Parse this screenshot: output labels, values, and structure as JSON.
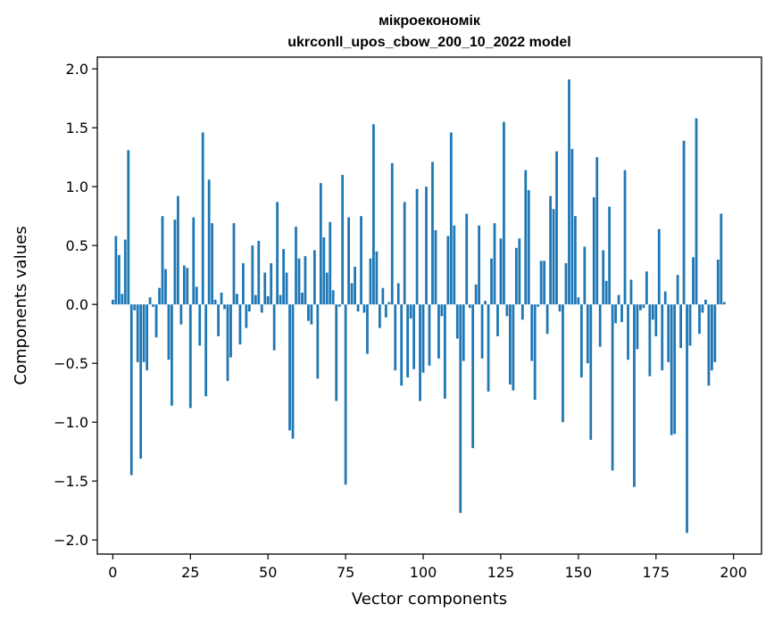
{
  "chart_data": {
    "type": "bar",
    "title_line1": "мікроекономік",
    "title_line2": "ukrconll_upos_cbow_200_10_2022 model",
    "xlabel": "Vector components",
    "ylabel": "Components values",
    "xlim": [
      -5,
      209
    ],
    "ylim": [
      -2.12,
      2.1
    ],
    "xticks": [
      0,
      25,
      50,
      75,
      100,
      125,
      150,
      175,
      200
    ],
    "xtick_labels": [
      "0",
      "25",
      "50",
      "75",
      "100",
      "125",
      "150",
      "175",
      "200"
    ],
    "yticks": [
      2.0,
      1.5,
      1.0,
      0.5,
      0.0,
      -0.5,
      -1.0,
      -1.5,
      -2.0
    ],
    "ytick_labels": [
      "2.0",
      "1.5",
      "1.0",
      "0.5",
      "0.0",
      "−0.5",
      "−1.0",
      "−1.5",
      "−2.0"
    ],
    "grid": false,
    "bar_color": "#1f77b4",
    "values": [
      0.04,
      0.58,
      0.42,
      0.09,
      0.55,
      1.31,
      -1.45,
      -0.05,
      -0.49,
      -1.31,
      -0.49,
      -0.56,
      0.06,
      -0.02,
      -0.28,
      0.14,
      0.75,
      0.3,
      -0.47,
      -0.86,
      0.72,
      0.92,
      -0.17,
      0.33,
      0.31,
      -0.88,
      0.74,
      0.15,
      -0.35,
      1.46,
      -0.78,
      1.06,
      0.69,
      0.04,
      -0.27,
      0.1,
      -0.04,
      -0.65,
      -0.45,
      0.69,
      0.09,
      -0.34,
      0.35,
      -0.2,
      -0.06,
      0.5,
      0.08,
      0.54,
      -0.07,
      0.27,
      0.07,
      0.35,
      -0.39,
      0.87,
      0.08,
      0.47,
      0.27,
      -1.07,
      -1.14,
      0.66,
      0.39,
      0.1,
      0.41,
      -0.14,
      -0.17,
      0.46,
      -0.63,
      1.03,
      0.57,
      0.27,
      0.7,
      0.12,
      -0.82,
      -0.02,
      1.1,
      -1.53,
      0.74,
      0.18,
      0.32,
      -0.06,
      0.75,
      -0.07,
      -0.42,
      0.39,
      1.53,
      0.45,
      -0.2,
      0.14,
      -0.11,
      0.02,
      1.2,
      -0.56,
      0.18,
      -0.69,
      0.87,
      -0.62,
      -0.12,
      -0.55,
      0.98,
      -0.82,
      -0.58,
      1.0,
      -0.52,
      1.21,
      0.63,
      -0.46,
      -0.1,
      -0.8,
      0.58,
      1.46,
      0.67,
      -0.29,
      -1.77,
      -0.48,
      0.77,
      -0.03,
      -1.22,
      0.17,
      0.67,
      -0.46,
      0.03,
      -0.74,
      0.39,
      0.69,
      -0.27,
      0.56,
      1.55,
      -0.1,
      -0.68,
      -0.73,
      0.48,
      0.56,
      -0.13,
      1.14,
      0.97,
      -0.48,
      -0.81,
      -0.02,
      0.37,
      0.37,
      -0.25,
      0.92,
      0.81,
      1.3,
      -0.06,
      -1.0,
      0.35,
      1.91,
      1.32,
      0.75,
      0.06,
      -0.62,
      0.49,
      -0.5,
      -1.15,
      0.91,
      1.25,
      -0.36,
      0.46,
      0.2,
      0.83,
      -1.41,
      -0.16,
      0.08,
      -0.15,
      1.14,
      -0.47,
      0.21,
      -1.55,
      -0.38,
      -0.05,
      -0.03,
      0.28,
      -0.61,
      -0.13,
      -0.27,
      0.64,
      -0.56,
      0.11,
      -0.49,
      -1.11,
      -1.1,
      0.25,
      -0.37,
      1.39,
      -1.94,
      -0.35,
      0.4,
      1.58,
      -0.25,
      -0.07,
      0.04,
      -0.69,
      -0.56,
      -0.49,
      0.38,
      0.77,
      0.02
    ]
  }
}
